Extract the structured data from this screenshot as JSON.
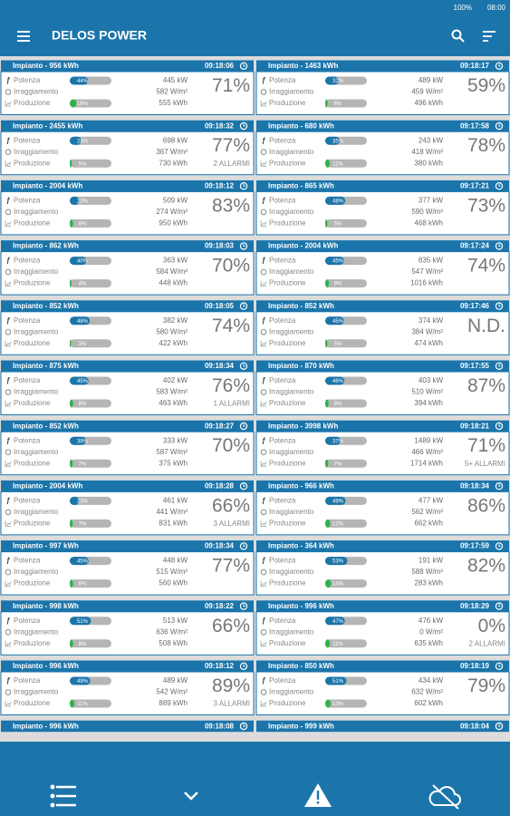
{
  "status_bar": {
    "battery": "100%",
    "time": "08:00"
  },
  "app_bar": {
    "title": "DELOS POWER"
  },
  "labels": {
    "potenza": "Potenza",
    "irraggiamento": "Irraggiamento",
    "produzione": "Produzione"
  },
  "plants": [
    {
      "name": "Impianto - 956 kWh",
      "time": "09:18:06",
      "potenza_bar": "44%",
      "potenza": "445 kW",
      "irraggiamento": "582 W/m²",
      "produzione_bar": "16%",
      "produzione": "555 kWh",
      "efficiency": "71%"
    },
    {
      "name": "Impianto - 1463 kWh",
      "time": "09:18:17",
      "potenza_bar": "32%",
      "potenza": "489 kW",
      "irraggiamento": "459 W/m²",
      "produzione_bar": "6%",
      "produzione": "496 kWh",
      "efficiency": "59%"
    },
    {
      "name": "Impianto - 2455 kWh",
      "time": "09:18:32",
      "potenza_bar": "28%",
      "potenza": "698 kW",
      "irraggiamento": "367 W/m²",
      "produzione_bar": "5%",
      "produzione": "730 kWh",
      "efficiency": "77%",
      "alarms": "2 ALLARMI"
    },
    {
      "name": "Impianto - 680 kWh",
      "time": "09:17:58",
      "potenza_bar": "35%",
      "potenza": "243 kW",
      "irraggiamento": "418 W/m²",
      "produzione_bar": "11%",
      "produzione": "380 kWh",
      "efficiency": "78%"
    },
    {
      "name": "Impianto - 2004 kWh",
      "time": "09:18:12",
      "potenza_bar": "23%",
      "potenza": "509 kW",
      "irraggiamento": "274 W/m²",
      "produzione_bar": "8%",
      "produzione": "950 kWh",
      "efficiency": "83%"
    },
    {
      "name": "Impianto - 865 kWh",
      "time": "09:17:21",
      "potenza_bar": "48%",
      "potenza": "377 kW",
      "irraggiamento": "590 W/m²",
      "produzione_bar": "5%",
      "produzione": "468 kWh",
      "efficiency": "73%"
    },
    {
      "name": "Impianto - 862 kWh",
      "time": "09:18:03",
      "potenza_bar": "40%",
      "potenza": "363 kW",
      "irraggiamento": "584 W/m²",
      "produzione_bar": "4%",
      "produzione": "448 kWh",
      "efficiency": "70%"
    },
    {
      "name": "Impianto - 2004 kWh",
      "time": "09:17:24",
      "potenza_bar": "45%",
      "potenza": "835 kW",
      "irraggiamento": "547 W/m²",
      "produzione_bar": "9%",
      "produzione": "1016 kWh",
      "efficiency": "74%"
    },
    {
      "name": "Impianto - 852 kWh",
      "time": "09:18:05",
      "potenza_bar": "48%",
      "potenza": "382 kW",
      "irraggiamento": "580 W/m²",
      "produzione_bar": "3%",
      "produzione": "422 kWh",
      "efficiency": "74%"
    },
    {
      "name": "Impianto - 852 kWh",
      "time": "09:17:46",
      "potenza_bar": "45%",
      "potenza": "374 kW",
      "irraggiamento": "384 W/m²",
      "produzione_bar": "5%",
      "produzione": "474 kWh",
      "efficiency": "N.D."
    },
    {
      "name": "Impianto - 875 kWh",
      "time": "09:18:34",
      "potenza_bar": "45%",
      "potenza": "402 kW",
      "irraggiamento": "583 W/m²",
      "produzione_bar": "8%",
      "produzione": "463 kWh",
      "efficiency": "76%",
      "alarms": "1 ALLARMI"
    },
    {
      "name": "Impianto - 870 kWh",
      "time": "09:17:55",
      "potenza_bar": "46%",
      "potenza": "403 kW",
      "irraggiamento": "510 W/m²",
      "produzione_bar": "8%",
      "produzione": "394 kWh",
      "efficiency": "87%"
    },
    {
      "name": "Impianto - 852 kWh",
      "time": "09:18:27",
      "potenza_bar": "39%",
      "potenza": "333 kW",
      "irraggiamento": "587 W/m²",
      "produzione_bar": "7%",
      "produzione": "375 kWh",
      "efficiency": "70%"
    },
    {
      "name": "Impianto - 3998 kWh",
      "time": "09:18:21",
      "potenza_bar": "37%",
      "potenza": "1489 kW",
      "irraggiamento": "466 W/m²",
      "produzione_bar": "7%",
      "produzione": "1714 kWh",
      "efficiency": "71%",
      "alarms": "5+ ALLARMI"
    },
    {
      "name": "Impianto - 2004 kWh",
      "time": "09:18:28",
      "potenza_bar": "23%",
      "potenza": "461 kW",
      "irraggiamento": "441 W/m²",
      "produzione_bar": "7%",
      "produzione": "831 kWh",
      "efficiency": "66%",
      "alarms": "3 ALLARMI"
    },
    {
      "name": "Impianto - 966 kWh",
      "time": "09:18:34",
      "potenza_bar": "49%",
      "potenza": "477 kW",
      "irraggiamento": "562 W/m²",
      "produzione_bar": "12%",
      "produzione": "662 kWh",
      "efficiency": "86%"
    },
    {
      "name": "Impianto - 997 kWh",
      "time": "09:18:34",
      "potenza_bar": "45%",
      "potenza": "448 kW",
      "irraggiamento": "515 W/m²",
      "produzione_bar": "8%",
      "produzione": "560 kWh",
      "efficiency": "77%"
    },
    {
      "name": "Impianto - 364 kWh",
      "time": "09:17:59",
      "potenza_bar": "53%",
      "potenza": "191 kW",
      "irraggiamento": "588 W/m²",
      "produzione_bar": "14%",
      "produzione": "283 kWh",
      "efficiency": "82%"
    },
    {
      "name": "Impianto - 998 kWh",
      "time": "09:18:22",
      "potenza_bar": "51%",
      "potenza": "513 kW",
      "irraggiamento": "636 W/m²",
      "produzione_bar": "8%",
      "produzione": "508 kWh",
      "efficiency": "66%"
    },
    {
      "name": "Impianto - 996 kWh",
      "time": "09:18:29",
      "potenza_bar": "47%",
      "potenza": "476 kW",
      "irraggiamento": "0 W/m²",
      "produzione_bar": "11%",
      "produzione": "635 kWh",
      "efficiency": "0%",
      "alarms": "2 ALLARMI"
    },
    {
      "name": "Impianto - 996 kWh",
      "time": "09:18:12",
      "potenza_bar": "49%",
      "potenza": "489 kW",
      "irraggiamento": "542 W/m²",
      "produzione_bar": "11%",
      "produzione": "889 kWh",
      "efficiency": "89%",
      "alarms": "3 ALLARMI"
    },
    {
      "name": "Impianto - 850 kWh",
      "time": "09:18:19",
      "potenza_bar": "51%",
      "potenza": "434 kW",
      "irraggiamento": "632 W/m²",
      "produzione_bar": "13%",
      "produzione": "602 kWh",
      "efficiency": "79%"
    },
    {
      "name": "Impianto - 996 kWh",
      "time": "09:18:08"
    },
    {
      "name": "Impianto - 999 kWh",
      "time": "09:18:04"
    }
  ]
}
